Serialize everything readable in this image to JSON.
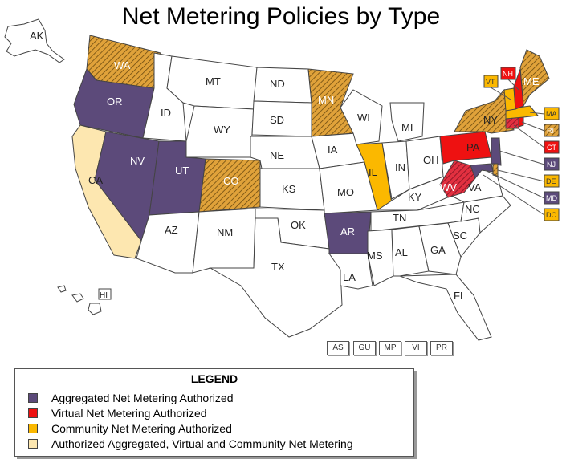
{
  "title": "Net Metering Policies by Type",
  "colors": {
    "aggregated": "#5c4a7a",
    "virtual": "#ee1111",
    "community": "#fbb800",
    "all": "#fde7b0",
    "hatch_bg": "#e0a23a",
    "none": "#ffffff",
    "border": "#444444"
  },
  "states": {
    "AK": "AK",
    "HI": "HI",
    "WA": "WA",
    "OR": "OR",
    "CA": "CA",
    "ID": "ID",
    "NV": "NV",
    "UT": "UT",
    "AZ": "AZ",
    "MT": "MT",
    "WY": "WY",
    "CO": "CO",
    "NM": "NM",
    "ND": "ND",
    "SD": "SD",
    "NE": "NE",
    "KS": "KS",
    "OK": "OK",
    "TX": "TX",
    "MN": "MN",
    "IA": "IA",
    "MO": "MO",
    "AR": "AR",
    "LA": "LA",
    "WI": "WI",
    "IL": "IL",
    "MI": "MI",
    "IN": "IN",
    "OH": "OH",
    "KY": "KY",
    "TN": "TN",
    "MS": "MS",
    "AL": "AL",
    "GA": "GA",
    "FL": "FL",
    "SC": "SC",
    "NC": "NC",
    "VA": "VA",
    "WV": "WV",
    "PA": "PA",
    "NY": "NY",
    "ME": "ME",
    "VT": "VT",
    "NH": "NH",
    "MA": "MA",
    "RI": "RI",
    "CT": "CT",
    "NJ": "NJ",
    "DE": "DE",
    "MD": "MD",
    "DC": "DC"
  },
  "territories": [
    "AS",
    "GU",
    "MP",
    "VI",
    "PR"
  ],
  "legend": {
    "title": "LEGEND",
    "items": [
      {
        "label": "Aggregated Net Metering Authorized",
        "color": "#5c4a7a"
      },
      {
        "label": "Virtual Net Metering Authorized",
        "color": "#ee1111"
      },
      {
        "label": "Community Net Metering Authorized",
        "color": "#fbb800"
      },
      {
        "label": "Authorized Aggregated, Virtual and Community Net Metering",
        "color": "#fde7b0"
      }
    ]
  }
}
